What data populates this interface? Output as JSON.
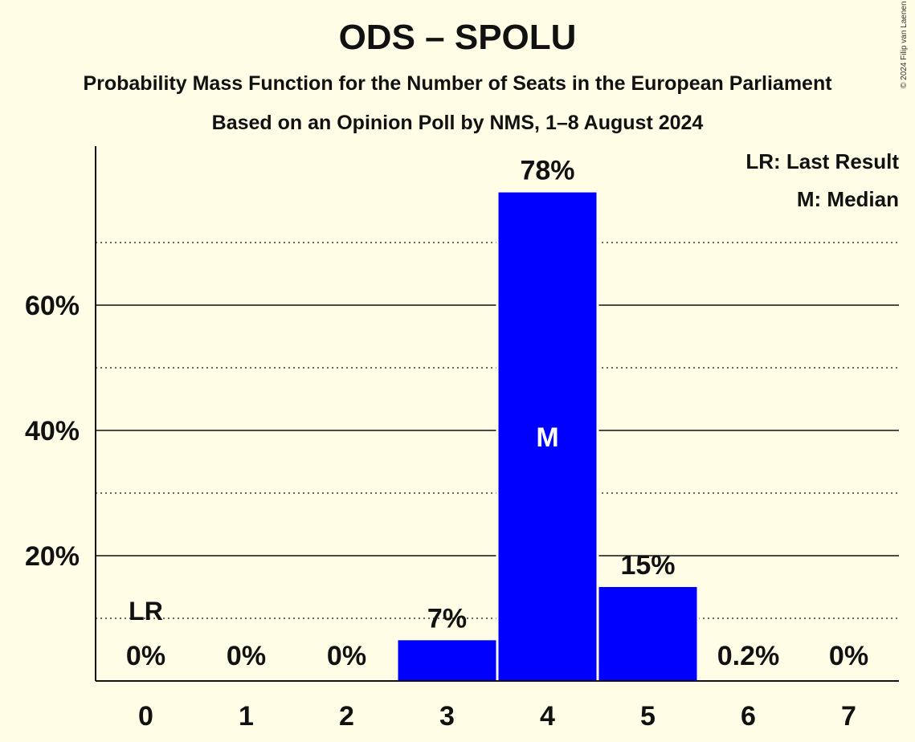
{
  "title": "ODS – SPOLU",
  "subtitle_1": "Probability Mass Function for the Number of Seats in the European Parliament",
  "subtitle_2": "Based on an Opinion Poll by NMS, 1–8 August 2024",
  "copyright": "© 2024 Filip van Laenen",
  "legend": {
    "last_result": "LR: Last Result",
    "median": "M: Median"
  },
  "colors": {
    "bar": "#0000FF",
    "background": "#FFFDE6",
    "text": "#111111"
  },
  "chart_data": {
    "type": "bar",
    "categories": [
      "0",
      "1",
      "2",
      "3",
      "4",
      "5",
      "6",
      "7"
    ],
    "values": [
      0,
      0,
      0,
      6.5,
      78,
      15,
      0.2,
      0
    ],
    "data_labels": [
      "0%",
      "0%",
      "0%",
      "7%",
      "78%",
      "15%",
      "0.2%",
      "0%"
    ],
    "ylim": [
      0,
      85
    ],
    "major_ticks": [
      20,
      40,
      60
    ],
    "major_tick_labels": [
      "20%",
      "40%",
      "60%"
    ],
    "minor_gridlines": [
      10,
      30,
      50,
      70
    ],
    "last_result_category": "0",
    "last_result_label": "LR",
    "median_category": "4",
    "median_label": "M"
  }
}
